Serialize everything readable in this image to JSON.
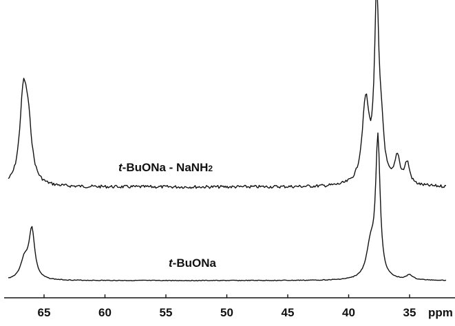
{
  "chart_data": {
    "type": "line",
    "title": "",
    "xlabel": "",
    "ylabel": "",
    "x_unit": "ppm",
    "x_axis_reversed": true,
    "xlim": [
      68,
      32
    ],
    "xticks": [
      65,
      60,
      55,
      50,
      45,
      40,
      35
    ],
    "grid": false,
    "legend": "none",
    "series": [
      {
        "name": "t-BuONa - NaNH2",
        "name_italic_prefix": "t",
        "name_rest": "-BuONa - NaNH",
        "name_subscript": "2",
        "peaks": [
          {
            "ppm": 66.7,
            "height": 0.47,
            "width": 0.35
          },
          {
            "ppm": 66.3,
            "height": 0.28,
            "width": 0.35
          },
          {
            "ppm": 38.6,
            "height": 0.45,
            "width": 0.35
          },
          {
            "ppm": 37.7,
            "height": 1.0,
            "width": 0.22
          },
          {
            "ppm": 37.3,
            "height": 0.22,
            "width": 0.25
          },
          {
            "ppm": 36.0,
            "height": 0.15,
            "width": 0.25
          },
          {
            "ppm": 35.2,
            "height": 0.12,
            "width": 0.25
          }
        ]
      },
      {
        "name": "t-BuONa",
        "name_italic_prefix": "t",
        "name_rest": "-BuONa",
        "name_subscript": "",
        "peaks": [
          {
            "ppm": 66.6,
            "height": 0.12,
            "width": 0.4
          },
          {
            "ppm": 66.0,
            "height": 0.3,
            "width": 0.28
          },
          {
            "ppm": 38.2,
            "height": 0.2,
            "width": 0.4
          },
          {
            "ppm": 37.6,
            "height": 0.85,
            "width": 0.22
          },
          {
            "ppm": 35.0,
            "height": 0.03,
            "width": 0.3
          }
        ]
      }
    ]
  }
}
